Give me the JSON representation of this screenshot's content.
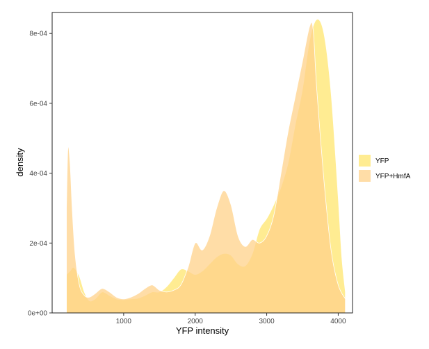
{
  "chart_data": {
    "type": "area",
    "title": "",
    "xlabel": "YFP intensity",
    "ylabel": "density",
    "xlim": [
      0,
      4200
    ],
    "ylim": [
      0,
      0.00086
    ],
    "x_ticks": [
      1000,
      2000,
      3000,
      4000
    ],
    "x_tick_labels": [
      "1000",
      "2000",
      "3000",
      "4000"
    ],
    "y_ticks": [
      0,
      0.0002,
      0.0004,
      0.0006,
      0.0008
    ],
    "y_tick_labels": [
      "0e+00",
      "2e-04",
      "4e-04",
      "6e-04",
      "8e-04"
    ],
    "grid": false,
    "legend_position": "right",
    "series": [
      {
        "name": "YFP",
        "color": "#FFE97F",
        "x": [
          200,
          250,
          300,
          380,
          450,
          520,
          600,
          700,
          800,
          900,
          1000,
          1100,
          1200,
          1300,
          1400,
          1500,
          1600,
          1700,
          1800,
          1900,
          2000,
          2100,
          2200,
          2300,
          2400,
          2500,
          2600,
          2700,
          2800,
          2900,
          3000,
          3100,
          3200,
          3300,
          3400,
          3500,
          3600,
          3700,
          3800,
          3900,
          4000,
          4050,
          4100
        ],
        "y": [
          0.00011,
          0.00012,
          0.00013,
          0.000105,
          6e-05,
          3.5e-05,
          4e-05,
          6e-05,
          5e-05,
          4e-05,
          3.8e-05,
          4e-05,
          4.2e-05,
          5e-05,
          6e-05,
          6e-05,
          7.5e-05,
          0.0001,
          0.000125,
          0.00012,
          0.00011,
          0.00012,
          0.00014,
          0.00016,
          0.00017,
          0.000165,
          0.00014,
          0.000135,
          0.00017,
          0.00024,
          0.00027,
          0.00031,
          0.00036,
          0.00043,
          0.00054,
          0.00064,
          0.00078,
          0.00084,
          0.0008,
          0.00063,
          0.00033,
          0.00016,
          6e-05
        ]
      },
      {
        "name": "YFP+HmfA",
        "color": "#FFD28A",
        "x": [
          200,
          220,
          250,
          280,
          320,
          380,
          450,
          520,
          600,
          700,
          800,
          900,
          1000,
          1100,
          1200,
          1300,
          1400,
          1500,
          1600,
          1700,
          1800,
          1900,
          2000,
          2100,
          2200,
          2300,
          2400,
          2500,
          2600,
          2700,
          2800,
          2900,
          3000,
          3100,
          3200,
          3300,
          3400,
          3500,
          3600,
          3650,
          3700,
          3800,
          3900,
          4000,
          4100
        ],
        "y": [
          0.0003,
          0.00047,
          0.00043,
          0.0003,
          0.00017,
          8e-05,
          5e-05,
          4.5e-05,
          5.5e-05,
          7e-05,
          6e-05,
          4.5e-05,
          4e-05,
          4.5e-05,
          5.5e-05,
          7e-05,
          8e-05,
          6.5e-05,
          6e-05,
          6.5e-05,
          8e-05,
          0.00013,
          0.0002,
          0.00018,
          0.00022,
          0.0003,
          0.00035,
          0.00031,
          0.00022,
          0.00019,
          0.00021,
          0.0002,
          0.00022,
          0.00028,
          0.0004,
          0.00052,
          0.00062,
          0.00072,
          0.00082,
          0.00081,
          0.00064,
          0.00038,
          0.00018,
          8e-05,
          4e-05
        ]
      }
    ]
  }
}
